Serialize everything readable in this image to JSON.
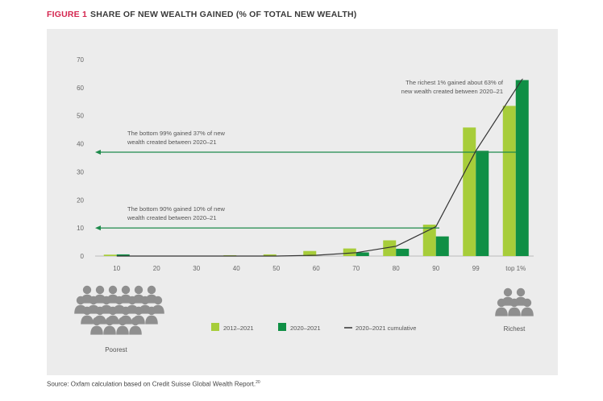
{
  "figure": {
    "number": "FIGURE 1",
    "title": "SHARE OF NEW WEALTH GAINED (% OF TOTAL NEW WEALTH)",
    "source": "Source: Oxfam calculation based on Credit Suisse Global Wealth Report.",
    "source_note": "20"
  },
  "labels": {
    "poorest": "Poorest",
    "richest": "Richest"
  },
  "colors": {
    "series_2012": "#a7cd3a",
    "series_2020": "#0f8f45",
    "cumulative": "#333333",
    "panel": "#ececec",
    "annotation_line": "#1e8a4b"
  },
  "chart_data": {
    "type": "bar",
    "categories": [
      "10",
      "20",
      "30",
      "40",
      "50",
      "60",
      "70",
      "80",
      "90",
      "99",
      "top 1%"
    ],
    "ylim": [
      0,
      70
    ],
    "yticks": [
      0,
      10,
      20,
      30,
      40,
      50,
      60,
      70
    ],
    "grid": false,
    "legend_placement": "bottom-center",
    "series": [
      {
        "name": "2012–2021",
        "type": "bar",
        "values": [
          0.5,
          0,
          0,
          0.3,
          0.6,
          1.8,
          2.7,
          5.6,
          11.2,
          45.8,
          53.5
        ]
      },
      {
        "name": "2020–2021",
        "type": "bar",
        "values": [
          0.6,
          0,
          0,
          0,
          0,
          0,
          1.3,
          2.6,
          7.0,
          37.5,
          62.7
        ]
      },
      {
        "name": "2020–2021 cumulative",
        "type": "line",
        "values": [
          0,
          0,
          0,
          0,
          0,
          0.3,
          1.2,
          3.5,
          10.5,
          37.5,
          63.0
        ]
      }
    ],
    "annotations": [
      {
        "text_lines": [
          "The richest 1% gained about 63% of",
          "new wealth created between 2020–21"
        ],
        "anchor": "top 1%",
        "y": 63
      },
      {
        "text_lines": [
          "The bottom 99% gained 37% of new",
          "wealth created between 2020–21"
        ],
        "y": 37
      },
      {
        "text_lines": [
          "The bottom 90% gained 10% of new",
          "wealth created between 2020–21"
        ],
        "y": 10
      }
    ]
  }
}
